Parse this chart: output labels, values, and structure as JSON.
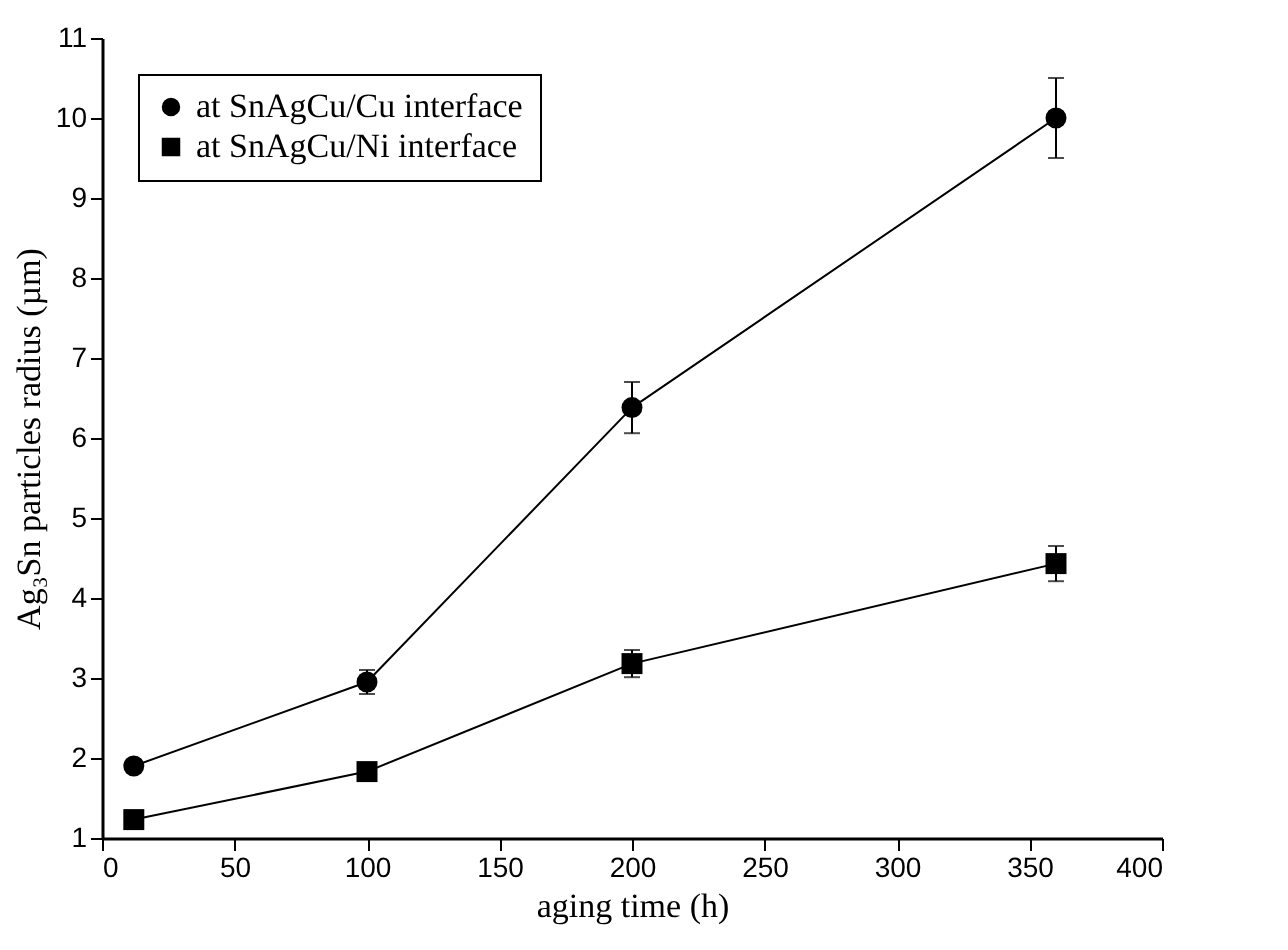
{
  "chart_data": {
    "type": "line",
    "xlabel": "aging time (h)",
    "ylabel": "Ag₃Sn particles radius (µm)",
    "x": [
      12,
      100,
      200,
      360
    ],
    "series": [
      {
        "name": "at SnAgCu/Cu interface",
        "color": "#000000",
        "marker": "circle",
        "values": [
          1.9,
          2.95,
          6.38,
          10.0
        ],
        "errors": [
          0.07,
          0.15,
          0.32,
          0.5
        ]
      },
      {
        "name": "at SnAgCu/Ni interface",
        "color": "#000000",
        "marker": "square",
        "values": [
          1.23,
          1.83,
          3.18,
          4.43
        ],
        "errors": [
          0.05,
          0.05,
          0.17,
          0.22
        ]
      }
    ],
    "xlim": [
      0,
      400
    ],
    "xticks": [
      0,
      50,
      100,
      150,
      200,
      250,
      300,
      350,
      400
    ],
    "ylim": [
      1,
      11
    ],
    "yticks": [
      1,
      2,
      3,
      4,
      5,
      6,
      7,
      8,
      9,
      10,
      11
    ],
    "grid": false,
    "legend": "top left"
  }
}
